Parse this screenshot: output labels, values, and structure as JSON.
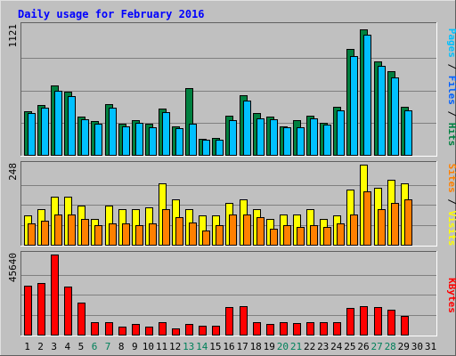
{
  "chart_data": {
    "type": "bar",
    "title": "Daily usage for February 2016",
    "x": [
      "1",
      "2",
      "3",
      "4",
      "5",
      "6",
      "7",
      "8",
      "9",
      "10",
      "11",
      "12",
      "13",
      "14",
      "15",
      "16",
      "17",
      "18",
      "19",
      "20",
      "21",
      "22",
      "23",
      "24",
      "25",
      "26",
      "27",
      "28",
      "29",
      "30",
      "31"
    ],
    "weekend_days": [
      "6",
      "7",
      "13",
      "14",
      "20",
      "21",
      "27",
      "28"
    ],
    "legend": [
      "Pages",
      "Files",
      "Hits",
      "Sites",
      "Visits",
      "KBytes"
    ],
    "panels": [
      {
        "name": "hits-files-pages",
        "y_max_label": "1121",
        "ylim": [
          0,
          1121
        ],
        "series": [
          {
            "name": "Hits",
            "color": "#008040",
            "values": [
              380,
              430,
              600,
              550,
              330,
              290,
              440,
              270,
              300,
              270,
              400,
              250,
              580,
              140,
              150,
              340,
              520,
              360,
              330,
              250,
              300,
              340,
              280,
              420,
              920,
              1090,
              810,
              730,
              420,
              0,
              0
            ]
          },
          {
            "name": "Files",
            "color": "#00c0ff",
            "values": [
              360,
              410,
              560,
              510,
              310,
              270,
              410,
              250,
              280,
              240,
              370,
              230,
              270,
              130,
              130,
              300,
              470,
              320,
              310,
              240,
              240,
              320,
              260,
              390,
              860,
              1040,
              770,
              670,
              390,
              0,
              0
            ]
          },
          {
            "name": "Pages",
            "color": "#00c0ff",
            "values": [
              0,
              0,
              0,
              0,
              0,
              0,
              0,
              0,
              0,
              0,
              0,
              0,
              0,
              0,
              0,
              0,
              0,
              0,
              0,
              0,
              0,
              0,
              0,
              0,
              0,
              0,
              0,
              0,
              0,
              0,
              0
            ]
          }
        ]
      },
      {
        "name": "visits-sites",
        "y_max_label": "248",
        "ylim": [
          0,
          248
        ],
        "series": [
          {
            "name": "Visits",
            "color": "#ffff00",
            "values": [
              90,
              110,
              150,
              150,
              120,
              80,
              120,
              110,
              110,
              115,
              190,
              140,
              110,
              90,
              90,
              130,
              140,
              110,
              80,
              95,
              95,
              110,
              80,
              90,
              170,
              248,
              175,
              200,
              190,
              0,
              0
            ]
          },
          {
            "name": "Sites",
            "color": "#ff8000",
            "values": [
              65,
              75,
              95,
              95,
              80,
              60,
              65,
              65,
              60,
              65,
              110,
              85,
              70,
              45,
              60,
              95,
              95,
              85,
              50,
              60,
              55,
              60,
              55,
              65,
              95,
              165,
              110,
              130,
              140,
              0,
              0
            ]
          }
        ]
      },
      {
        "name": "kbytes",
        "y_max_label": "45640",
        "ylim": [
          0,
          45640
        ],
        "series": [
          {
            "name": "KBytes",
            "color": "#ff0000",
            "values": [
              28000,
              29500,
              45640,
              27500,
              18500,
              7000,
              7000,
              4800,
              6200,
              4500,
              7000,
              3800,
              6200,
              5000,
              4900,
              15800,
              16000,
              7000,
              6000,
              7000,
              6600,
              7000,
              7000,
              7000,
              15000,
              16300,
              15800,
              14000,
              10500,
              0,
              0
            ]
          }
        ]
      }
    ]
  }
}
